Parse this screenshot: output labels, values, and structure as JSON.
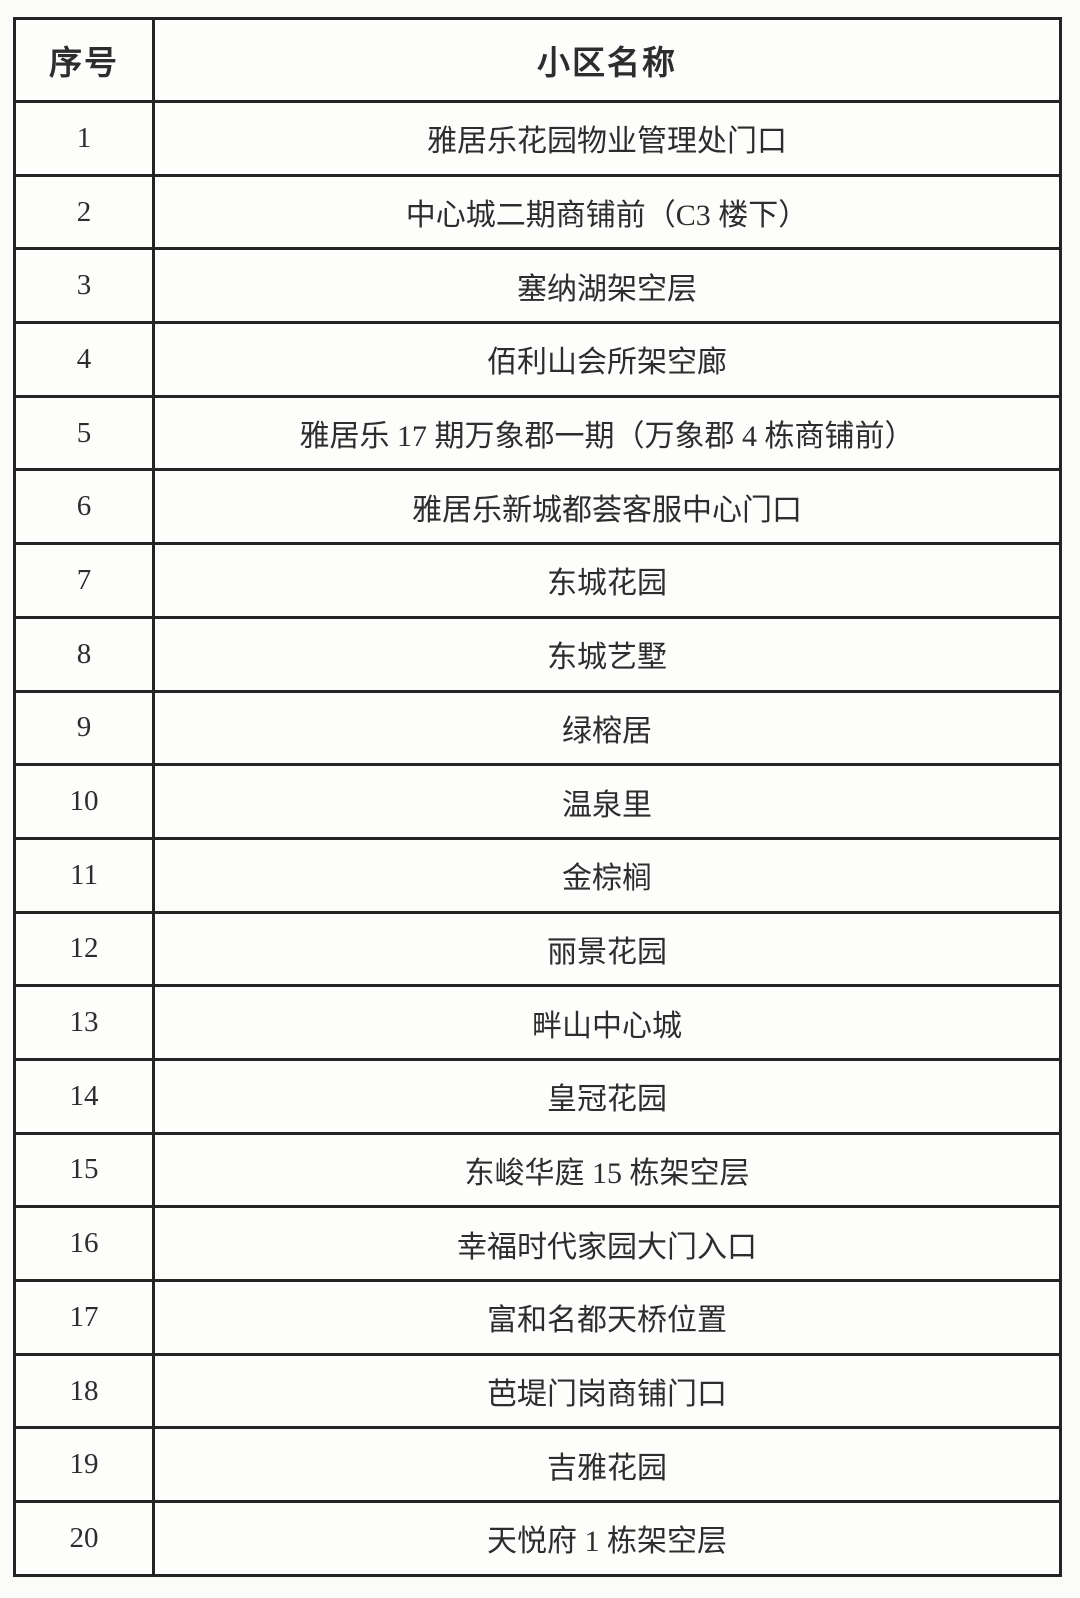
{
  "table": {
    "headers": {
      "no": "序号",
      "name": "小区名称"
    },
    "rows": [
      {
        "no": "1",
        "name": "雅居乐花园物业管理处门口"
      },
      {
        "no": "2",
        "name": "中心城二期商铺前（C3 楼下）"
      },
      {
        "no": "3",
        "name": "塞纳湖架空层"
      },
      {
        "no": "4",
        "name": "佰利山会所架空廊"
      },
      {
        "no": "5",
        "name": "雅居乐 17 期万象郡一期（万象郡 4 栋商铺前）"
      },
      {
        "no": "6",
        "name": "雅居乐新城都荟客服中心门口"
      },
      {
        "no": "7",
        "name": "东城花园"
      },
      {
        "no": "8",
        "name": "东城艺墅"
      },
      {
        "no": "9",
        "name": "绿榕居"
      },
      {
        "no": "10",
        "name": "温泉里"
      },
      {
        "no": "11",
        "name": "金棕榈"
      },
      {
        "no": "12",
        "name": "丽景花园"
      },
      {
        "no": "13",
        "name": "畔山中心城"
      },
      {
        "no": "14",
        "name": "皇冠花园"
      },
      {
        "no": "15",
        "name": "东峻华庭 15 栋架空层"
      },
      {
        "no": "16",
        "name": "幸福时代家园大门入口"
      },
      {
        "no": "17",
        "name": "富和名都天桥位置"
      },
      {
        "no": "18",
        "name": "芭堤门岗商铺门口"
      },
      {
        "no": "19",
        "name": "吉雅花园"
      },
      {
        "no": "20",
        "name": "天悦府 1 栋架空层"
      }
    ]
  },
  "colors": {
    "border": "#242424",
    "text": "#2d2d2d",
    "background": "#fbfbfa"
  }
}
